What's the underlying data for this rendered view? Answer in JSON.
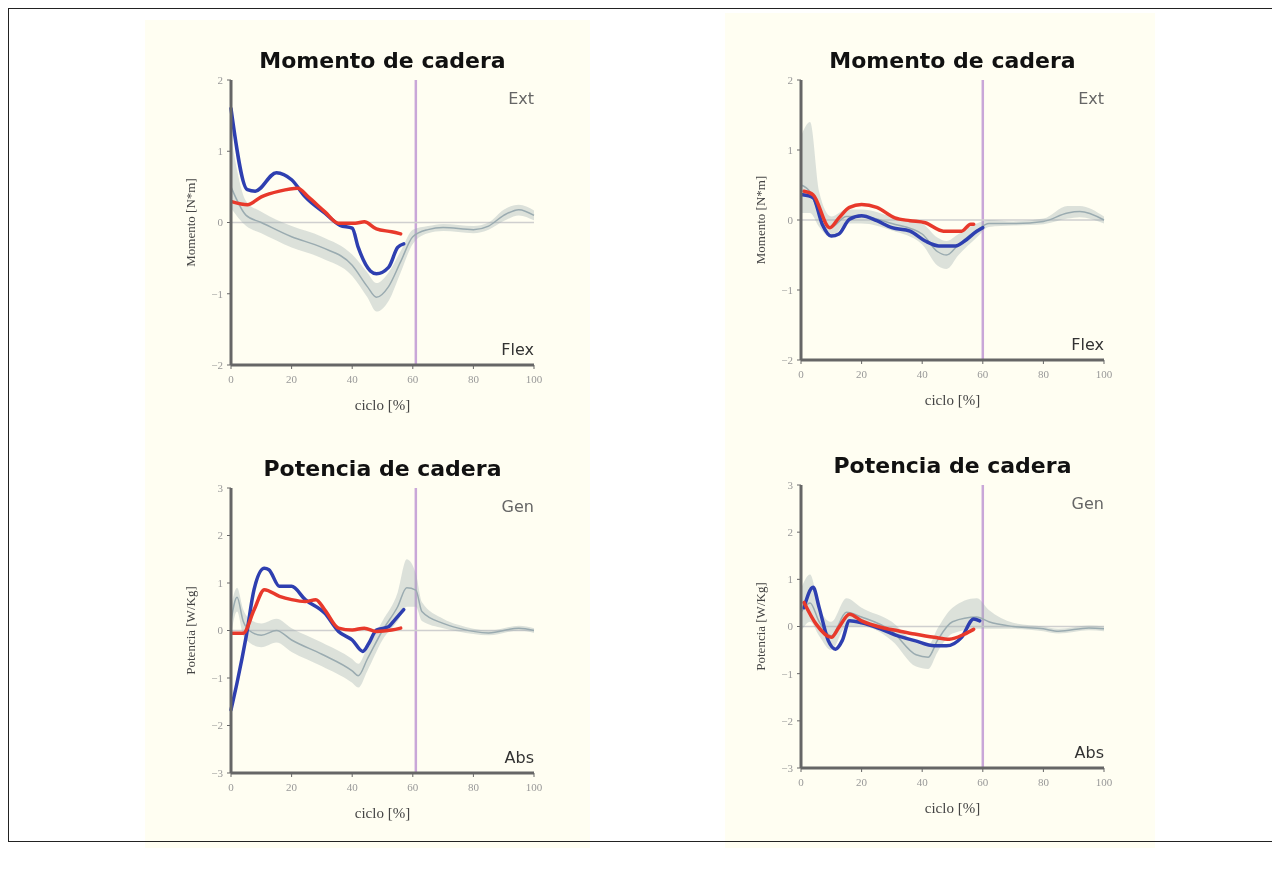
{
  "chart_data": [
    {
      "type": "line",
      "title": "Momento de cadera",
      "xlabel": "ciclo [%]",
      "ylabel": "Momento [N*m]",
      "annotations": [
        "Ext",
        "Flex"
      ],
      "xlim": [
        0,
        100
      ],
      "xticks": [
        0,
        20,
        40,
        60,
        80,
        100
      ],
      "ylim": [
        -2,
        2
      ],
      "yticks": [
        -2,
        -1,
        0,
        1,
        2
      ],
      "ref_lines": [
        {
          "axis": "x",
          "value": 61,
          "color": "#c9a7d8"
        },
        {
          "axis": "y",
          "value": 0,
          "color": "#cfcfcf"
        }
      ],
      "series": [
        {
          "color": "#9aabb0",
          "x": [
            0,
            5,
            10,
            20,
            30,
            40,
            45,
            48,
            52,
            56,
            60,
            65,
            70,
            80,
            85,
            90,
            95,
            100
          ],
          "values": [
            0.5,
            0.1,
            0,
            -0.2,
            -0.35,
            -0.6,
            -0.9,
            -1.05,
            -0.9,
            -0.55,
            -0.2,
            -0.1,
            -0.07,
            -0.1,
            -0.05,
            0.1,
            0.18,
            0.1
          ],
          "lower": [
            0.2,
            -0.05,
            -0.15,
            -0.35,
            -0.5,
            -0.75,
            -1.05,
            -1.25,
            -1.1,
            -0.7,
            -0.3,
            -0.15,
            -0.12,
            -0.15,
            -0.1,
            0.02,
            0.1,
            0.03
          ],
          "upper": [
            1.2,
            0.3,
            0.15,
            -0.05,
            -0.2,
            -0.45,
            -0.7,
            -0.85,
            -0.7,
            -0.4,
            -0.1,
            -0.05,
            -0.02,
            -0.05,
            0,
            0.18,
            0.25,
            0.17
          ]
        },
        {
          "color": "#2e3fb0",
          "x": [
            0,
            5.4,
            8,
            15,
            20,
            24.5,
            31,
            36,
            40,
            42,
            46,
            48,
            52,
            55,
            57
          ],
          "values": [
            1.6,
            0.46,
            0.44,
            0.7,
            0.6,
            0.36,
            0.13,
            -0.04,
            -0.08,
            -0.35,
            -0.68,
            -0.72,
            -0.63,
            -0.35,
            -0.3
          ]
        },
        {
          "color": "#e8392b",
          "x": [
            0.5,
            5.4,
            10,
            16,
            22,
            25.5,
            31,
            35.5,
            41,
            44,
            48,
            53,
            56
          ],
          "values": [
            0.29,
            0.25,
            0.36,
            0.44,
            0.48,
            0.36,
            0.15,
            -0.01,
            -0.01,
            0.01,
            -0.09,
            -0.13,
            -0.16
          ]
        }
      ]
    },
    {
      "type": "line",
      "title": "Momento de cadera",
      "xlabel": "ciclo [%]",
      "ylabel": "Momento [N*m]",
      "annotations": [
        "Ext",
        "Flex"
      ],
      "xlim": [
        0,
        100
      ],
      "xticks": [
        0,
        20,
        40,
        60,
        80,
        100
      ],
      "ylim": [
        -2,
        2
      ],
      "yticks": [
        -2,
        -1,
        0,
        1,
        2
      ],
      "ref_lines": [
        {
          "axis": "x",
          "value": 60,
          "color": "#c9a7d8"
        },
        {
          "axis": "y",
          "value": 0,
          "color": "#cfcfcf"
        }
      ],
      "series": [
        {
          "color": "#9aabb0",
          "x": [
            0,
            3,
            6,
            10,
            15,
            20,
            30,
            40,
            45,
            48,
            52,
            58,
            62,
            70,
            80,
            88,
            92,
            100
          ],
          "values": [
            0.5,
            0.4,
            0.1,
            -0.1,
            0.05,
            0.05,
            -0.05,
            -0.2,
            -0.45,
            -0.5,
            -0.35,
            -0.15,
            -0.05,
            -0.05,
            -0.02,
            0.1,
            0.12,
            0
          ],
          "lower": [
            0.1,
            0.1,
            -0.1,
            -0.25,
            -0.05,
            -0.05,
            -0.15,
            -0.35,
            -0.65,
            -0.7,
            -0.5,
            -0.25,
            -0.1,
            -0.08,
            -0.06,
            0.02,
            0.04,
            -0.05
          ],
          "upper": [
            1.2,
            1.4,
            0.4,
            0.05,
            0.15,
            0.15,
            0.05,
            -0.05,
            -0.25,
            -0.3,
            -0.2,
            -0.05,
            0,
            -0.02,
            0.02,
            0.2,
            0.2,
            0.05
          ]
        },
        {
          "color": "#2e3fb0",
          "x": [
            0.5,
            4,
            7,
            10,
            12.5,
            16,
            20,
            25,
            30,
            36,
            41,
            45.5,
            51,
            54,
            58,
            60
          ],
          "values": [
            0.36,
            0.32,
            -0.06,
            -0.23,
            -0.2,
            0.01,
            0.06,
            -0.01,
            -0.11,
            -0.16,
            -0.3,
            -0.37,
            -0.37,
            -0.3,
            -0.16,
            -0.11
          ]
        },
        {
          "color": "#e8392b",
          "x": [
            1,
            4,
            9.5,
            12.5,
            16,
            20,
            25,
            31,
            36,
            41,
            47,
            53,
            56,
            57
          ],
          "values": [
            0.41,
            0.36,
            -0.11,
            0.03,
            0.18,
            0.22,
            0.18,
            0.03,
            -0.01,
            -0.04,
            -0.16,
            -0.16,
            -0.06,
            -0.06
          ]
        }
      ]
    },
    {
      "type": "line",
      "title": "Potencia de cadera",
      "xlabel": "ciclo [%]",
      "ylabel": "Potencia [W/Kg]",
      "annotations": [
        "Gen",
        "Abs"
      ],
      "xlim": [
        0,
        100
      ],
      "xticks": [
        0,
        20,
        40,
        60,
        80,
        100
      ],
      "ylim": [
        -3,
        3
      ],
      "yticks": [
        -3,
        -2,
        -1,
        0,
        1,
        2,
        3
      ],
      "ref_lines": [
        {
          "axis": "x",
          "value": 61,
          "color": "#c9a7d8"
        },
        {
          "axis": "y",
          "value": 0,
          "color": "#cfcfcf"
        }
      ],
      "series": [
        {
          "color": "#9aabb0",
          "x": [
            0,
            2,
            4,
            6,
            10,
            15,
            20,
            30,
            40,
            42,
            45,
            50,
            55,
            58,
            61,
            63,
            70,
            75,
            85,
            95,
            100
          ],
          "values": [
            0.2,
            0.7,
            0.2,
            0,
            -0.1,
            0,
            -0.2,
            -0.5,
            -0.85,
            -0.95,
            -0.6,
            0,
            0.5,
            0.9,
            0.85,
            0.4,
            0.15,
            0.05,
            -0.05,
            0.05,
            0
          ],
          "lower": [
            -0.1,
            0.4,
            -0.1,
            -0.25,
            -0.35,
            -0.25,
            -0.45,
            -0.75,
            -1.1,
            -1.2,
            -0.85,
            -0.2,
            0.2,
            0.5,
            0.5,
            0.2,
            0.05,
            -0.02,
            -0.1,
            0,
            -0.05
          ],
          "upper": [
            0.5,
            0.9,
            0.45,
            0.25,
            0.15,
            0.25,
            0.05,
            -0.25,
            -0.6,
            -0.7,
            -0.35,
            0.2,
            0.8,
            1.5,
            1.2,
            0.6,
            0.25,
            0.12,
            0,
            0.1,
            0.05
          ]
        },
        {
          "color": "#2e3fb0",
          "x": [
            0,
            2,
            5,
            7.6,
            11,
            12.5,
            16,
            20,
            24.5,
            31,
            35.5,
            40,
            43.5,
            45.5,
            48,
            52,
            54,
            57
          ],
          "values": [
            -1.67,
            -1.1,
            -0.13,
            0.86,
            1.31,
            1.28,
            0.93,
            0.93,
            0.65,
            0.36,
            -0.02,
            -0.2,
            -0.44,
            -0.27,
            0.01,
            0.08,
            0.22,
            0.44
          ]
        },
        {
          "color": "#e8392b",
          "x": [
            0.5,
            4,
            7.6,
            11,
            16,
            20,
            24.5,
            28,
            31,
            35.5,
            40,
            44,
            48,
            53,
            56
          ],
          "values": [
            -0.06,
            -0.06,
            0.43,
            0.86,
            0.72,
            0.65,
            0.61,
            0.65,
            0.43,
            0.05,
            0.01,
            0.05,
            -0.02,
            0.01,
            0.05
          ]
        }
      ]
    },
    {
      "type": "line",
      "title": "Potencia de cadera",
      "xlabel": "ciclo [%]",
      "ylabel": "Potencia [W/Kg]",
      "annotations": [
        "Gen",
        "Abs"
      ],
      "xlim": [
        0,
        100
      ],
      "xticks": [
        0,
        20,
        40,
        60,
        80,
        100
      ],
      "ylim": [
        -3,
        3
      ],
      "yticks": [
        -3,
        -2,
        -1,
        0,
        1,
        2,
        3
      ],
      "ref_lines": [
        {
          "axis": "x",
          "value": 60,
          "color": "#c9a7d8"
        },
        {
          "axis": "y",
          "value": 0,
          "color": "#cfcfcf"
        }
      ],
      "series": [
        {
          "color": "#9aabb0",
          "x": [
            0,
            3,
            6,
            10,
            15,
            20,
            30,
            38,
            42,
            45,
            50,
            58,
            62,
            70,
            80,
            85,
            95,
            100
          ],
          "values": [
            0.3,
            0.5,
            0.1,
            -0.2,
            0.3,
            0.2,
            -0.1,
            -0.6,
            -0.65,
            -0.3,
            0.1,
            0.2,
            0.1,
            0,
            -0.05,
            -0.1,
            -0.03,
            -0.05
          ],
          "lower": [
            -0.1,
            0.1,
            -0.2,
            -0.5,
            0,
            0,
            -0.3,
            -0.85,
            -0.9,
            -0.55,
            -0.15,
            -0.05,
            -0.05,
            -0.05,
            -0.1,
            -0.15,
            -0.08,
            -0.1
          ],
          "upper": [
            0.8,
            1.1,
            0.4,
            0.1,
            0.6,
            0.4,
            0.1,
            -0.35,
            -0.4,
            -0.05,
            0.4,
            0.6,
            0.35,
            0.08,
            0,
            -0.05,
            0.02,
            0
          ]
        },
        {
          "color": "#2e3fb0",
          "x": [
            1,
            4,
            6,
            9,
            11.4,
            13.6,
            16,
            20,
            26.6,
            32,
            37.5,
            44,
            48,
            53,
            57,
            59
          ],
          "values": [
            0.4,
            0.83,
            0.4,
            -0.3,
            -0.48,
            -0.3,
            0.12,
            0.08,
            -0.06,
            -0.2,
            -0.3,
            -0.41,
            -0.41,
            -0.23,
            0.16,
            0.12
          ]
        },
        {
          "color": "#e8392b",
          "x": [
            1,
            5,
            10,
            12.5,
            16,
            20,
            26.6,
            32,
            37.5,
            44,
            49,
            54,
            57
          ],
          "values": [
            0.51,
            0.05,
            -0.23,
            -0.02,
            0.26,
            0.12,
            -0.02,
            -0.09,
            -0.16,
            -0.23,
            -0.27,
            -0.16,
            -0.06
          ]
        }
      ]
    }
  ]
}
